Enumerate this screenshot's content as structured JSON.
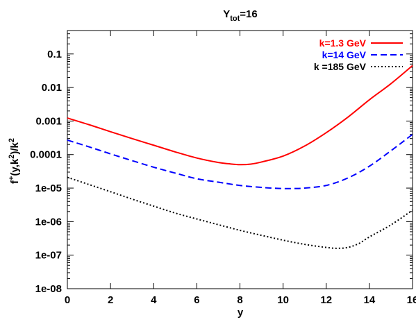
{
  "chart_data": {
    "type": "line",
    "title": {
      "main": "Y",
      "sub": "tot",
      "rest": "=16"
    },
    "xlabel": "y",
    "ylabel": {
      "a": "f",
      "sup1": "+",
      "b": "(y,k",
      "sup2": "2",
      "c": ")/k",
      "sup3": "2"
    },
    "xlim": [
      0,
      16
    ],
    "ylim": [
      1e-08,
      0.5
    ],
    "yscale": "log",
    "grid": false,
    "legend_position": "top-right",
    "x_ticks": [
      0,
      2,
      4,
      6,
      8,
      10,
      12,
      14,
      16
    ],
    "x_tick_labels": [
      "0",
      "2",
      "4",
      "6",
      "8",
      "10",
      "12",
      "14",
      "16"
    ],
    "y_ticks": [
      1e-08,
      1e-07,
      1e-06,
      1e-05,
      0.0001,
      0.001,
      0.01,
      0.1
    ],
    "y_tick_labels": [
      "1e-08",
      "1e-07",
      "1e-06",
      "1e-05",
      "0.0001",
      "0.001",
      "0.01",
      "0.1"
    ],
    "series": [
      {
        "name": "k=1.3 GeV",
        "color": "#ff0000",
        "style": "solid",
        "x": [
          0,
          1,
          2,
          3,
          4,
          5,
          6,
          7,
          7.5,
          8,
          8.5,
          9,
          10,
          11,
          12,
          13,
          14,
          15,
          16
        ],
        "y": [
          0.00123,
          0.00078,
          0.00048,
          0.0003,
          0.00019,
          0.00012,
          7.9e-05,
          5.8e-05,
          5.3e-05,
          5e-05,
          5.2e-05,
          6e-05,
          9e-05,
          0.00018,
          0.00045,
          0.0013,
          0.0043,
          0.013,
          0.045
        ]
      },
      {
        "name": "k=14 GeV",
        "color": "#0000ff",
        "style": "dashed",
        "x": [
          0,
          1,
          2,
          3,
          4,
          5,
          6,
          7,
          8,
          9,
          9.5,
          10,
          10.5,
          11,
          12,
          13,
          14,
          15,
          16
        ],
        "y": [
          0.00027,
          0.00017,
          0.000105,
          6.6e-05,
          4.2e-05,
          2.8e-05,
          1.9e-05,
          1.5e-05,
          1.2e-05,
          1.05e-05,
          1e-05,
          9.7e-06,
          9.7e-06,
          1e-05,
          1.2e-05,
          2e-05,
          4.5e-05,
          0.00013,
          0.0004
        ]
      },
      {
        "name": "k =185 GeV",
        "color": "#000000",
        "style": "dotted",
        "x": [
          0,
          1,
          2,
          3,
          4,
          5,
          6,
          7,
          8,
          9,
          10,
          11,
          12,
          12.5,
          13,
          13.5,
          14,
          15,
          16
        ],
        "y": [
          2.1e-05,
          1.28e-05,
          7.8e-06,
          4.7e-06,
          2.9e-06,
          1.8e-06,
          1.2e-06,
          8.1e-07,
          5.5e-07,
          3.9e-07,
          2.8e-07,
          2.1e-07,
          1.7e-07,
          1.6e-07,
          1.7e-07,
          2.2e-07,
          3.5e-07,
          8e-07,
          2.2e-06
        ]
      }
    ]
  }
}
